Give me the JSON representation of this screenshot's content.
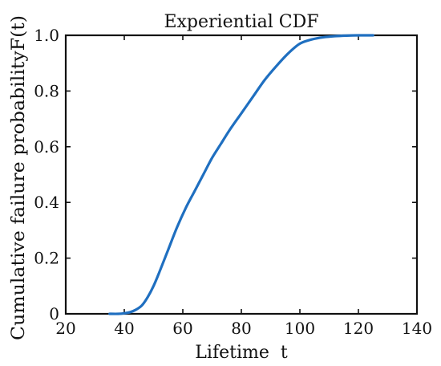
{
  "chart_data": {
    "type": "line",
    "title": "Experiential CDF",
    "xlabel": "Lifetime  t",
    "ylabel": "Cumulative failure probabilityF(t)",
    "xlim": [
      20,
      140
    ],
    "ylim": [
      0,
      1
    ],
    "x_ticks": [
      20,
      40,
      60,
      80,
      100,
      120,
      140
    ],
    "x_tick_labels": [
      "20",
      "40",
      "60",
      "80",
      "100",
      "120",
      "140"
    ],
    "y_ticks": [
      0,
      0.2,
      0.4,
      0.6,
      0.8,
      1.0
    ],
    "y_tick_labels": [
      "0",
      "0.2",
      "0.4",
      "0.6",
      "0.8",
      "1.0"
    ],
    "grid": false,
    "series": [
      {
        "color": "#1f6fc0",
        "x": [
          35,
          38,
          40,
          42,
          44,
          46,
          48,
          50,
          52,
          55,
          58,
          61,
          64,
          67,
          70,
          73,
          76,
          80,
          84,
          88,
          92,
          96,
          100,
          104,
          108,
          112,
          116,
          120,
          125
        ],
        "y": [
          0.0,
          0.0,
          0.002,
          0.006,
          0.015,
          0.03,
          0.06,
          0.1,
          0.15,
          0.23,
          0.31,
          0.38,
          0.44,
          0.5,
          0.56,
          0.61,
          0.66,
          0.72,
          0.78,
          0.84,
          0.89,
          0.935,
          0.97,
          0.985,
          0.993,
          0.997,
          0.999,
          1.0,
          1.0
        ]
      }
    ]
  }
}
